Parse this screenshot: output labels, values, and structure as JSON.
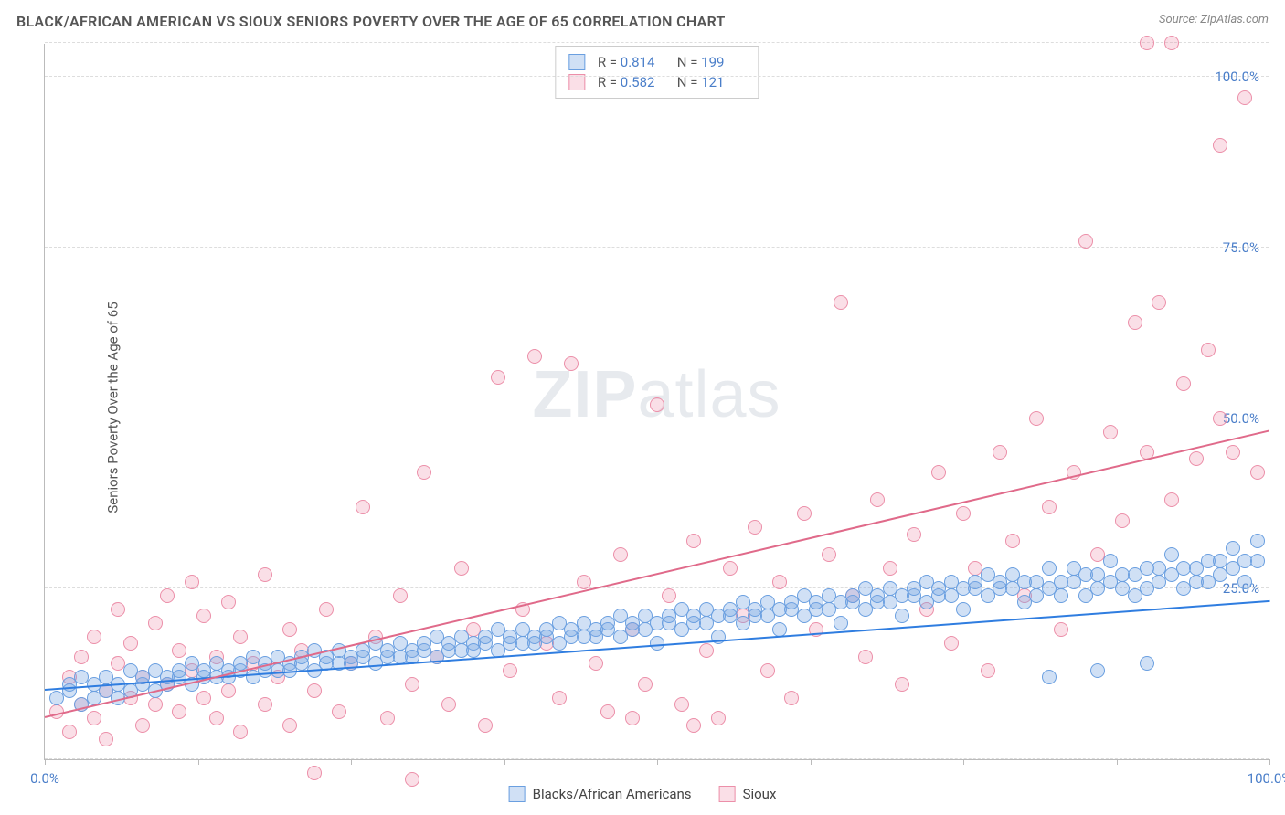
{
  "title": "BLACK/AFRICAN AMERICAN VS SIOUX SENIORS POVERTY OVER THE AGE OF 65 CORRELATION CHART",
  "source": "Source: ZipAtlas.com",
  "y_axis_label": "Seniors Poverty Over the Age of 65",
  "watermark_bold": "ZIP",
  "watermark_light": "atlas",
  "chart": {
    "type": "scatter",
    "xlim": [
      0,
      100
    ],
    "ylim": [
      0,
      105
    ],
    "x_ticks": [
      0,
      12.5,
      25,
      37.5,
      50,
      62.5,
      75,
      87.5,
      100
    ],
    "x_tick_labels": {
      "0": "0.0%",
      "100": "100.0%"
    },
    "y_gridlines": [
      0,
      25,
      50,
      75,
      100,
      105
    ],
    "y_tick_labels": {
      "25": "25.0%",
      "50": "50.0%",
      "75": "75.0%",
      "100": "100.0%"
    },
    "grid_color": "#dddddd",
    "axis_color": "#bbbbbb",
    "background": "#ffffff",
    "label_color": "#4a7ec9",
    "title_color": "#555555",
    "marker_radius": 8,
    "marker_stroke_width": 1.2,
    "series": [
      {
        "name": "Blacks/African Americans",
        "fill": "rgba(120,165,225,0.35)",
        "stroke": "#6a9fe0",
        "line_color": "#2f7de0",
        "trend": {
          "x1": 0,
          "y1": 10,
          "x2": 100,
          "y2": 23
        },
        "R": "0.814",
        "N": "199",
        "points": [
          [
            1,
            9
          ],
          [
            2,
            10
          ],
          [
            2,
            11
          ],
          [
            3,
            8
          ],
          [
            3,
            12
          ],
          [
            4,
            9
          ],
          [
            4,
            11
          ],
          [
            5,
            10
          ],
          [
            5,
            12
          ],
          [
            6,
            9
          ],
          [
            6,
            11
          ],
          [
            7,
            10
          ],
          [
            7,
            13
          ],
          [
            8,
            11
          ],
          [
            8,
            12
          ],
          [
            9,
            10
          ],
          [
            9,
            13
          ],
          [
            10,
            11
          ],
          [
            10,
            12
          ],
          [
            11,
            12
          ],
          [
            11,
            13
          ],
          [
            12,
            11
          ],
          [
            12,
            14
          ],
          [
            13,
            12
          ],
          [
            13,
            13
          ],
          [
            14,
            12
          ],
          [
            14,
            14
          ],
          [
            15,
            13
          ],
          [
            15,
            12
          ],
          [
            16,
            13
          ],
          [
            16,
            14
          ],
          [
            17,
            12
          ],
          [
            17,
            15
          ],
          [
            18,
            13
          ],
          [
            18,
            14
          ],
          [
            19,
            13
          ],
          [
            19,
            15
          ],
          [
            20,
            14
          ],
          [
            20,
            13
          ],
          [
            21,
            14
          ],
          [
            21,
            15
          ],
          [
            22,
            13
          ],
          [
            22,
            16
          ],
          [
            23,
            14
          ],
          [
            23,
            15
          ],
          [
            24,
            14
          ],
          [
            24,
            16
          ],
          [
            25,
            15
          ],
          [
            25,
            14
          ],
          [
            26,
            15
          ],
          [
            26,
            16
          ],
          [
            27,
            14
          ],
          [
            27,
            17
          ],
          [
            28,
            15
          ],
          [
            28,
            16
          ],
          [
            29,
            15
          ],
          [
            29,
            17
          ],
          [
            30,
            16
          ],
          [
            30,
            15
          ],
          [
            31,
            16
          ],
          [
            31,
            17
          ],
          [
            32,
            15
          ],
          [
            32,
            18
          ],
          [
            33,
            16
          ],
          [
            33,
            17
          ],
          [
            34,
            16
          ],
          [
            34,
            18
          ],
          [
            35,
            17
          ],
          [
            35,
            16
          ],
          [
            36,
            17
          ],
          [
            36,
            18
          ],
          [
            37,
            16
          ],
          [
            37,
            19
          ],
          [
            38,
            17
          ],
          [
            38,
            18
          ],
          [
            39,
            17
          ],
          [
            39,
            19
          ],
          [
            40,
            18
          ],
          [
            40,
            17
          ],
          [
            41,
            18
          ],
          [
            41,
            19
          ],
          [
            42,
            17
          ],
          [
            42,
            20
          ],
          [
            43,
            18
          ],
          [
            43,
            19
          ],
          [
            44,
            18
          ],
          [
            44,
            20
          ],
          [
            45,
            19
          ],
          [
            45,
            18
          ],
          [
            46,
            19
          ],
          [
            46,
            20
          ],
          [
            47,
            18
          ],
          [
            47,
            21
          ],
          [
            48,
            19
          ],
          [
            48,
            20
          ],
          [
            49,
            19
          ],
          [
            49,
            21
          ],
          [
            50,
            20
          ],
          [
            50,
            17
          ],
          [
            51,
            20
          ],
          [
            51,
            21
          ],
          [
            52,
            19
          ],
          [
            52,
            22
          ],
          [
            53,
            20
          ],
          [
            53,
            21
          ],
          [
            54,
            20
          ],
          [
            54,
            22
          ],
          [
            55,
            21
          ],
          [
            55,
            18
          ],
          [
            56,
            21
          ],
          [
            56,
            22
          ],
          [
            57,
            20
          ],
          [
            57,
            23
          ],
          [
            58,
            21
          ],
          [
            58,
            22
          ],
          [
            59,
            21
          ],
          [
            59,
            23
          ],
          [
            60,
            22
          ],
          [
            60,
            19
          ],
          [
            61,
            22
          ],
          [
            61,
            23
          ],
          [
            62,
            21
          ],
          [
            62,
            24
          ],
          [
            63,
            22
          ],
          [
            63,
            23
          ],
          [
            64,
            22
          ],
          [
            64,
            24
          ],
          [
            65,
            23
          ],
          [
            65,
            20
          ],
          [
            66,
            23
          ],
          [
            66,
            24
          ],
          [
            67,
            22
          ],
          [
            67,
            25
          ],
          [
            68,
            23
          ],
          [
            68,
            24
          ],
          [
            69,
            23
          ],
          [
            69,
            25
          ],
          [
            70,
            24
          ],
          [
            70,
            21
          ],
          [
            71,
            24
          ],
          [
            71,
            25
          ],
          [
            72,
            23
          ],
          [
            72,
            26
          ],
          [
            73,
            24
          ],
          [
            73,
            25
          ],
          [
            74,
            24
          ],
          [
            74,
            26
          ],
          [
            75,
            25
          ],
          [
            75,
            22
          ],
          [
            76,
            25
          ],
          [
            76,
            26
          ],
          [
            77,
            24
          ],
          [
            77,
            27
          ],
          [
            78,
            25
          ],
          [
            78,
            26
          ],
          [
            79,
            25
          ],
          [
            79,
            27
          ],
          [
            80,
            26
          ],
          [
            80,
            23
          ],
          [
            81,
            26
          ],
          [
            81,
            24
          ],
          [
            82,
            25
          ],
          [
            82,
            28
          ],
          [
            83,
            26
          ],
          [
            83,
            24
          ],
          [
            84,
            26
          ],
          [
            84,
            28
          ],
          [
            85,
            24
          ],
          [
            85,
            27
          ],
          [
            86,
            27
          ],
          [
            86,
            25
          ],
          [
            87,
            26
          ],
          [
            87,
            29
          ],
          [
            88,
            27
          ],
          [
            88,
            25
          ],
          [
            89,
            27
          ],
          [
            89,
            24
          ],
          [
            90,
            28
          ],
          [
            90,
            25
          ],
          [
            91,
            28
          ],
          [
            91,
            26
          ],
          [
            92,
            27
          ],
          [
            92,
            30
          ],
          [
            93,
            28
          ],
          [
            93,
            25
          ],
          [
            94,
            28
          ],
          [
            94,
            26
          ],
          [
            95,
            29
          ],
          [
            95,
            26
          ],
          [
            96,
            29
          ],
          [
            96,
            27
          ],
          [
            97,
            28
          ],
          [
            97,
            31
          ],
          [
            98,
            29
          ],
          [
            98,
            26
          ],
          [
            99,
            29
          ],
          [
            99,
            32
          ],
          [
            82,
            12
          ],
          [
            86,
            13
          ],
          [
            90,
            14
          ]
        ]
      },
      {
        "name": "Sioux",
        "fill": "rgba(240,150,175,0.30)",
        "stroke": "#ec8fa9",
        "line_color": "#e06a8a",
        "trend": {
          "x1": 0,
          "y1": 6,
          "x2": 100,
          "y2": 48
        },
        "R": "0.582",
        "N": "121",
        "points": [
          [
            1,
            7
          ],
          [
            2,
            12
          ],
          [
            2,
            4
          ],
          [
            3,
            15
          ],
          [
            3,
            8
          ],
          [
            4,
            6
          ],
          [
            4,
            18
          ],
          [
            5,
            10
          ],
          [
            5,
            3
          ],
          [
            6,
            14
          ],
          [
            6,
            22
          ],
          [
            7,
            9
          ],
          [
            7,
            17
          ],
          [
            8,
            12
          ],
          [
            8,
            5
          ],
          [
            9,
            20
          ],
          [
            9,
            8
          ],
          [
            10,
            24
          ],
          [
            10,
            11
          ],
          [
            11,
            7
          ],
          [
            11,
            16
          ],
          [
            12,
            26
          ],
          [
            12,
            13
          ],
          [
            13,
            9
          ],
          [
            13,
            21
          ],
          [
            14,
            15
          ],
          [
            14,
            6
          ],
          [
            15,
            23
          ],
          [
            15,
            10
          ],
          [
            16,
            18
          ],
          [
            16,
            4
          ],
          [
            17,
            14
          ],
          [
            18,
            8
          ],
          [
            18,
            27
          ],
          [
            19,
            12
          ],
          [
            20,
            19
          ],
          [
            20,
            5
          ],
          [
            21,
            16
          ],
          [
            22,
            10
          ],
          [
            23,
            22
          ],
          [
            24,
            7
          ],
          [
            25,
            14
          ],
          [
            26,
            37
          ],
          [
            27,
            18
          ],
          [
            28,
            6
          ],
          [
            29,
            24
          ],
          [
            30,
            11
          ],
          [
            31,
            42
          ],
          [
            32,
            15
          ],
          [
            33,
            8
          ],
          [
            34,
            28
          ],
          [
            35,
            19
          ],
          [
            36,
            5
          ],
          [
            37,
            56
          ],
          [
            38,
            13
          ],
          [
            39,
            22
          ],
          [
            40,
            59
          ],
          [
            41,
            17
          ],
          [
            42,
            9
          ],
          [
            43,
            58
          ],
          [
            44,
            26
          ],
          [
            45,
            14
          ],
          [
            46,
            7
          ],
          [
            47,
            30
          ],
          [
            48,
            19
          ],
          [
            49,
            11
          ],
          [
            50,
            52
          ],
          [
            51,
            24
          ],
          [
            52,
            8
          ],
          [
            53,
            32
          ],
          [
            54,
            16
          ],
          [
            55,
            6
          ],
          [
            56,
            28
          ],
          [
            57,
            21
          ],
          [
            58,
            34
          ],
          [
            59,
            13
          ],
          [
            60,
            26
          ],
          [
            61,
            9
          ],
          [
            62,
            36
          ],
          [
            63,
            19
          ],
          [
            64,
            30
          ],
          [
            65,
            67
          ],
          [
            66,
            24
          ],
          [
            67,
            15
          ],
          [
            68,
            38
          ],
          [
            69,
            28
          ],
          [
            70,
            11
          ],
          [
            71,
            33
          ],
          [
            72,
            22
          ],
          [
            73,
            42
          ],
          [
            74,
            17
          ],
          [
            75,
            36
          ],
          [
            76,
            28
          ],
          [
            77,
            13
          ],
          [
            78,
            45
          ],
          [
            79,
            32
          ],
          [
            80,
            24
          ],
          [
            81,
            50
          ],
          [
            82,
            37
          ],
          [
            83,
            19
          ],
          [
            84,
            42
          ],
          [
            85,
            76
          ],
          [
            86,
            30
          ],
          [
            87,
            48
          ],
          [
            88,
            35
          ],
          [
            89,
            64
          ],
          [
            90,
            45
          ],
          [
            91,
            67
          ],
          [
            92,
            38
          ],
          [
            93,
            55
          ],
          [
            94,
            44
          ],
          [
            95,
            60
          ],
          [
            96,
            50
          ],
          [
            97,
            45
          ],
          [
            98,
            97
          ],
          [
            99,
            42
          ],
          [
            90,
            105
          ],
          [
            92,
            105
          ],
          [
            96,
            90
          ],
          [
            22,
            -2
          ],
          [
            30,
            -3
          ],
          [
            48,
            6
          ],
          [
            53,
            5
          ]
        ]
      }
    ]
  },
  "stats_labels": {
    "R": "R =",
    "N": "N ="
  },
  "legend": [
    "Blacks/African Americans",
    "Sioux"
  ]
}
